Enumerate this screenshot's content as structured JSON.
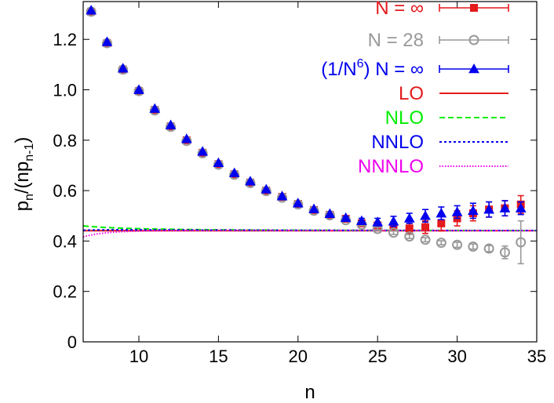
{
  "chart_data": {
    "type": "scatter",
    "xlabel": "n",
    "ylabel": {
      "base": "p",
      "sub1": "n",
      "mid": "/(np",
      "sub2": "n-1",
      "close": ")"
    },
    "xlim": [
      6.5,
      35
    ],
    "ylim": [
      0,
      1.35
    ],
    "xticks": [
      10,
      15,
      20,
      25,
      30,
      35
    ],
    "yticks": [
      0,
      0.2,
      0.4,
      0.6,
      0.8,
      1.0,
      1.2
    ],
    "xtick_labels": [
      "10",
      "15",
      "20",
      "25",
      "30",
      "35"
    ],
    "ytick_labels": [
      "0",
      "0.2",
      "0.4",
      "0.6",
      "0.8",
      "1.0",
      "1.2"
    ],
    "grid": false,
    "legend_position": "top-right",
    "series": [
      {
        "name": "N = ∞",
        "kind": "points",
        "marker": "square",
        "color": "#e41a1c",
        "x": [
          7,
          8,
          9,
          10,
          11,
          12,
          13,
          14,
          15,
          16,
          17,
          18,
          19,
          20,
          21,
          22,
          23,
          24,
          25,
          26,
          27,
          28,
          29,
          30,
          31,
          32,
          33,
          34
        ],
        "y": [
          1.31,
          1.185,
          1.08,
          0.995,
          0.92,
          0.855,
          0.8,
          0.75,
          0.705,
          0.665,
          0.632,
          0.6,
          0.575,
          0.547,
          0.523,
          0.504,
          0.488,
          0.47,
          0.462,
          0.455,
          0.45,
          0.455,
          0.47,
          0.49,
          0.51,
          0.525,
          0.53,
          0.545
        ],
        "err": [
          0,
          0,
          0,
          0,
          0,
          0,
          0,
          0,
          0,
          0,
          0,
          0,
          0,
          0,
          0,
          0,
          0.005,
          0.01,
          0.012,
          0.015,
          0.02,
          0.025,
          0.03,
          0.03,
          0.03,
          0.03,
          0.03,
          0.035
        ]
      },
      {
        "name": "N = 28",
        "kind": "points",
        "marker": "circle",
        "color": "#999999",
        "x": [
          7,
          8,
          9,
          10,
          11,
          12,
          13,
          14,
          15,
          16,
          17,
          18,
          19,
          20,
          21,
          22,
          23,
          24,
          25,
          26,
          27,
          28,
          29,
          30,
          31,
          32,
          33,
          34
        ],
        "y": [
          1.31,
          1.185,
          1.08,
          0.995,
          0.918,
          0.853,
          0.797,
          0.748,
          0.703,
          0.663,
          0.63,
          0.598,
          0.572,
          0.545,
          0.52,
          0.502,
          0.483,
          0.465,
          0.448,
          0.433,
          0.418,
          0.405,
          0.393,
          0.385,
          0.378,
          0.37,
          0.355,
          0.395
        ],
        "err": [
          0,
          0,
          0,
          0,
          0,
          0,
          0,
          0,
          0,
          0,
          0,
          0,
          0,
          0,
          0,
          0,
          0.005,
          0.005,
          0.006,
          0.007,
          0.008,
          0.008,
          0.008,
          0.01,
          0.01,
          0.012,
          0.025,
          0.085
        ]
      },
      {
        "name": "(1/N⁶) N = ∞",
        "kind": "points",
        "marker": "triangle",
        "color": "#0000ee",
        "x": [
          7,
          8,
          9,
          10,
          11,
          12,
          13,
          14,
          15,
          16,
          17,
          18,
          19,
          20,
          21,
          22,
          23,
          24,
          25,
          26,
          27,
          28,
          29,
          30,
          31,
          32,
          33,
          34
        ],
        "y": [
          1.315,
          1.19,
          1.085,
          1.0,
          0.925,
          0.86,
          0.805,
          0.755,
          0.71,
          0.67,
          0.637,
          0.605,
          0.578,
          0.55,
          0.527,
          0.508,
          0.492,
          0.48,
          0.475,
          0.478,
          0.49,
          0.5,
          0.51,
          0.515,
          0.52,
          0.525,
          0.53,
          0.53
        ],
        "err": [
          0,
          0,
          0,
          0,
          0,
          0,
          0,
          0,
          0,
          0,
          0,
          0,
          0,
          0,
          0,
          0,
          0.005,
          0.01,
          0.015,
          0.02,
          0.02,
          0.025,
          0.025,
          0.025,
          0.03,
          0.03,
          0.03,
          0.025
        ]
      },
      {
        "name": "LO",
        "kind": "curve",
        "style": "solid",
        "color": "#e41a1c",
        "formula": "lo"
      },
      {
        "name": "NLO",
        "kind": "curve",
        "style": "dashed",
        "color": "#00ee00",
        "formula": "nlo"
      },
      {
        "name": "NNLO",
        "kind": "curve",
        "style": "dotted",
        "color": "#0000ee",
        "formula": "nnlo"
      },
      {
        "name": "NNNLO",
        "kind": "curve",
        "style": "finedot",
        "color": "#ee00ee",
        "formula": "nnnlo"
      }
    ],
    "curve_params": {
      "c0": 0.4411,
      "c1": 0.8,
      "c2": -4.8,
      "c3": -47
    }
  }
}
